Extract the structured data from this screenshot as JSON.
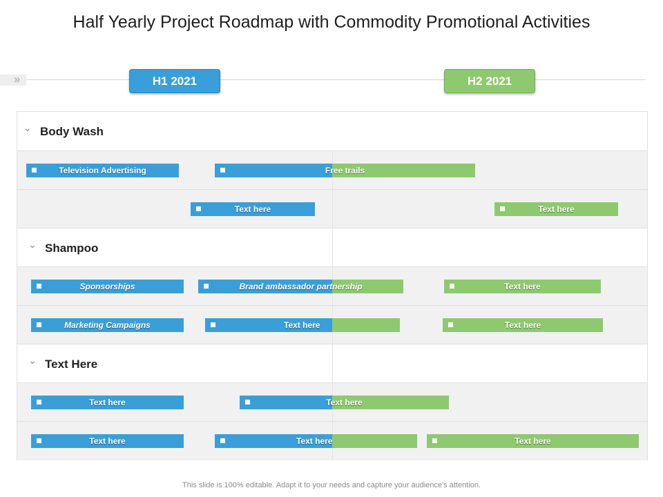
{
  "title": "Half Yearly Project Roadmap with Commodity Promotional Activities",
  "timeline": {
    "arrow_glyph": "»",
    "h1": {
      "label": "H1 2021",
      "color": "#3a9fd8"
    },
    "h2": {
      "label": "H2 2021",
      "color": "#8ec96f"
    }
  },
  "categories": [
    {
      "label": "Body Wash"
    },
    {
      "label": "Shampoo"
    },
    {
      "label": "Text Here"
    }
  ],
  "bars": [
    {
      "label": "Television Advertising"
    },
    {
      "label": "Free trails"
    },
    {
      "label": "Text here"
    },
    {
      "label": "Text here"
    },
    {
      "label": "Sponsorships"
    },
    {
      "label": "Brand ambassador partnership"
    },
    {
      "label": "Text here"
    },
    {
      "label": "Marketing Campaigns"
    },
    {
      "label": "Text here"
    },
    {
      "label": "Text here"
    },
    {
      "label": "Text here"
    },
    {
      "label": "Text here"
    },
    {
      "label": "Text here"
    },
    {
      "label": "Text here"
    },
    {
      "label": "Text here"
    }
  ],
  "footer": "This slide is 100% editable. Adapt it to your needs and capture your audience's attention."
}
